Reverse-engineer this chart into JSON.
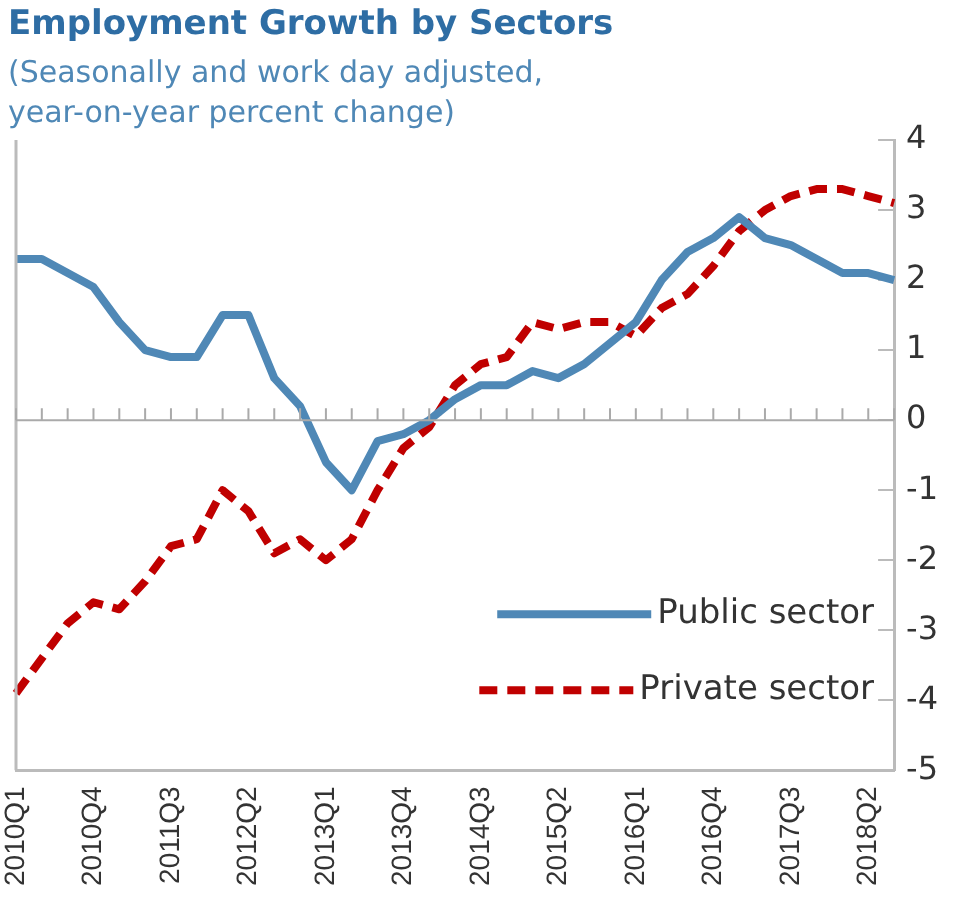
{
  "chart_data": {
    "type": "line",
    "title": "Employment Growth by Sectors",
    "subtitle": "(Seasonally and work day adjusted, year-on-year percent change)",
    "categories": [
      "2010Q1",
      null,
      null,
      "2010Q4",
      null,
      null,
      "2011Q3",
      null,
      null,
      "2012Q2",
      null,
      null,
      "2013Q1",
      null,
      null,
      "2013Q4",
      null,
      null,
      "2014Q3",
      null,
      null,
      "2015Q2",
      null,
      null,
      "2016Q1",
      null,
      null,
      "2016Q4",
      null,
      null,
      "2017Q3",
      null,
      null,
      "2018Q2",
      null
    ],
    "series": [
      {
        "name": "Public sector",
        "color": "#4f88b6",
        "line_style": "solid",
        "values": [
          2.3,
          2.3,
          2.1,
          1.9,
          1.4,
          1.0,
          0.9,
          0.9,
          1.5,
          1.5,
          0.6,
          0.2,
          -0.6,
          -1.0,
          -0.3,
          -0.2,
          0.0,
          0.3,
          0.5,
          0.5,
          0.7,
          0.6,
          0.8,
          1.1,
          1.4,
          2.0,
          2.4,
          2.6,
          2.9,
          2.6,
          2.5,
          2.3,
          2.1,
          2.1,
          2.0
        ]
      },
      {
        "name": "Private sector",
        "color": "#c00000",
        "line_style": "dashed",
        "values": [
          -3.9,
          -3.4,
          -2.9,
          -2.6,
          -2.7,
          -2.3,
          -1.8,
          -1.7,
          -1.0,
          -1.3,
          -1.9,
          -1.7,
          -2.0,
          -1.7,
          -1.0,
          -0.4,
          -0.1,
          0.5,
          0.8,
          0.9,
          1.4,
          1.3,
          1.4,
          1.4,
          1.2,
          1.6,
          1.8,
          2.2,
          2.7,
          3.0,
          3.2,
          3.3,
          3.3,
          3.2,
          3.1
        ]
      }
    ],
    "ylim": [
      -5,
      4
    ],
    "yticks": [
      -5,
      -4,
      -3,
      -2,
      -1,
      0,
      1,
      2,
      3,
      4
    ],
    "grid": false,
    "ref_lines": [
      {
        "axis": "y",
        "value": 0,
        "color": "#aaaaaa"
      }
    ],
    "legend": "bottom right",
    "marker": "none"
  }
}
